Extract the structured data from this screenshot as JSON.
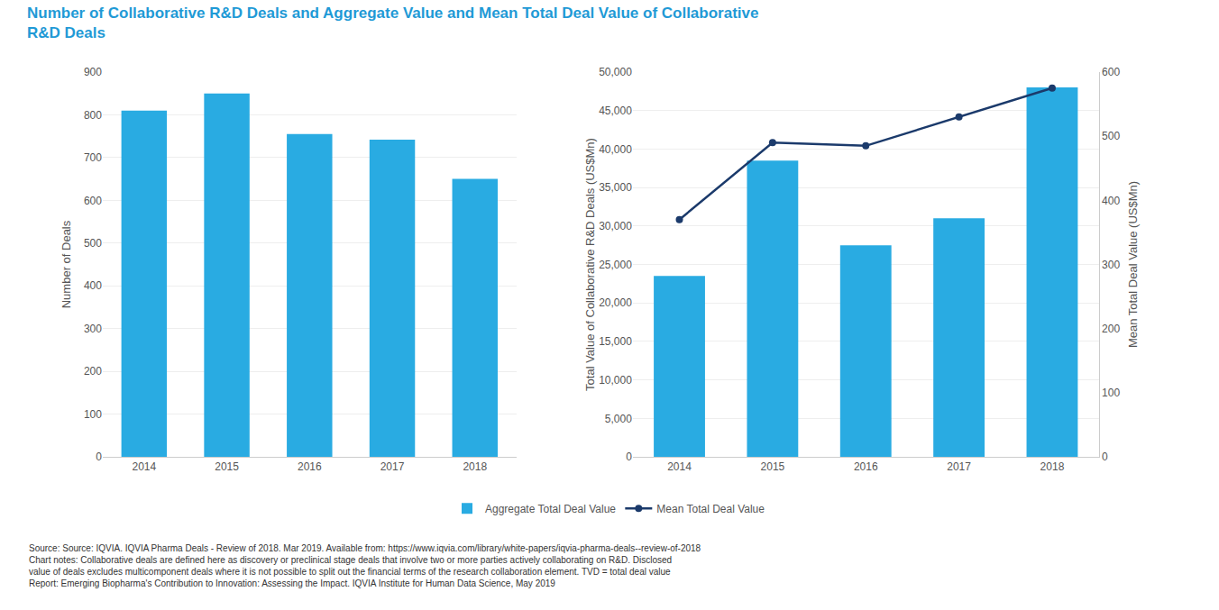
{
  "chart_data": [
    {
      "type": "bar",
      "title": "Number of Collaborative R&D Deals and Aggregate Value and Mean Total Deal Value of Collaborative\nR&D Deals",
      "categories": [
        "2014",
        "2015",
        "2016",
        "2017",
        "2018"
      ],
      "values": [
        810,
        850,
        755,
        742,
        650
      ],
      "color": "#29ABE2",
      "ylabel": "Number of Deals",
      "ylim": [
        0,
        900
      ],
      "yticks": [
        0,
        100,
        200,
        300,
        400,
        500,
        600,
        700,
        800,
        900
      ],
      "grid": true,
      "annotations": [
        {
          "text": "Source: Source: IQVIA. IQVIA Pharma Deals - Review of 2018. Mar 2019. Available from: https://www.iqvia.com/library/white-papers/iqvia-pharma-deals--review-of-2018\nChart notes: Collaborative deals are defined here as discovery or preclinical stage deals that involve two or more parties actively collaborating on R&D. Disclosed\nvalue of deals excludes multicomponent deals where it is not possible to split out the financial terms of the research collaboration element. TVD = total deal value\nReport: Emerging Biopharma's Contribution to Innovation: Assessing the Impact. IQVIA Institute for Human Data Science, May 2019"
        }
      ]
    },
    {
      "type": "bar",
      "categories": [
        "2014",
        "2015",
        "2016",
        "2017",
        "2018"
      ],
      "series": [
        {
          "name": "Aggregate Total Deal Value",
          "type": "bar",
          "color": "#29ABE2",
          "values": [
            23500,
            38500,
            27500,
            31000,
            48000
          ]
        },
        {
          "name": "Mean Total Deal Value",
          "type": "line",
          "color": "#1B3A6B",
          "marker": "circle",
          "axis": "y2",
          "values": [
            370,
            490,
            485,
            530,
            575
          ]
        }
      ],
      "ylabel": "Total Value of Collaborative R&D Deals (US$Mn)",
      "y2label": "Mean Total Deal Value (US$Mn)",
      "ylim": [
        0,
        50000
      ],
      "yticks": [
        0,
        {
          "value": 5000,
          "label": "5,000"
        },
        {
          "value": 10000,
          "label": "10,000"
        },
        {
          "value": 15000,
          "label": "15,000"
        },
        {
          "value": 20000,
          "label": "20,000"
        },
        {
          "value": 25000,
          "label": "25,000"
        },
        {
          "value": 30000,
          "label": "30,000"
        },
        {
          "value": 35000,
          "label": "35,000"
        },
        {
          "value": 40000,
          "label": "40,000"
        },
        {
          "value": 45000,
          "label": "45,000"
        },
        {
          "value": 50000,
          "label": "50,000"
        }
      ],
      "y2lim": [
        0,
        600
      ],
      "y2ticks": [
        0,
        100,
        200,
        300,
        400,
        500,
        600
      ],
      "grid": true,
      "legend": "bottom"
    }
  ]
}
